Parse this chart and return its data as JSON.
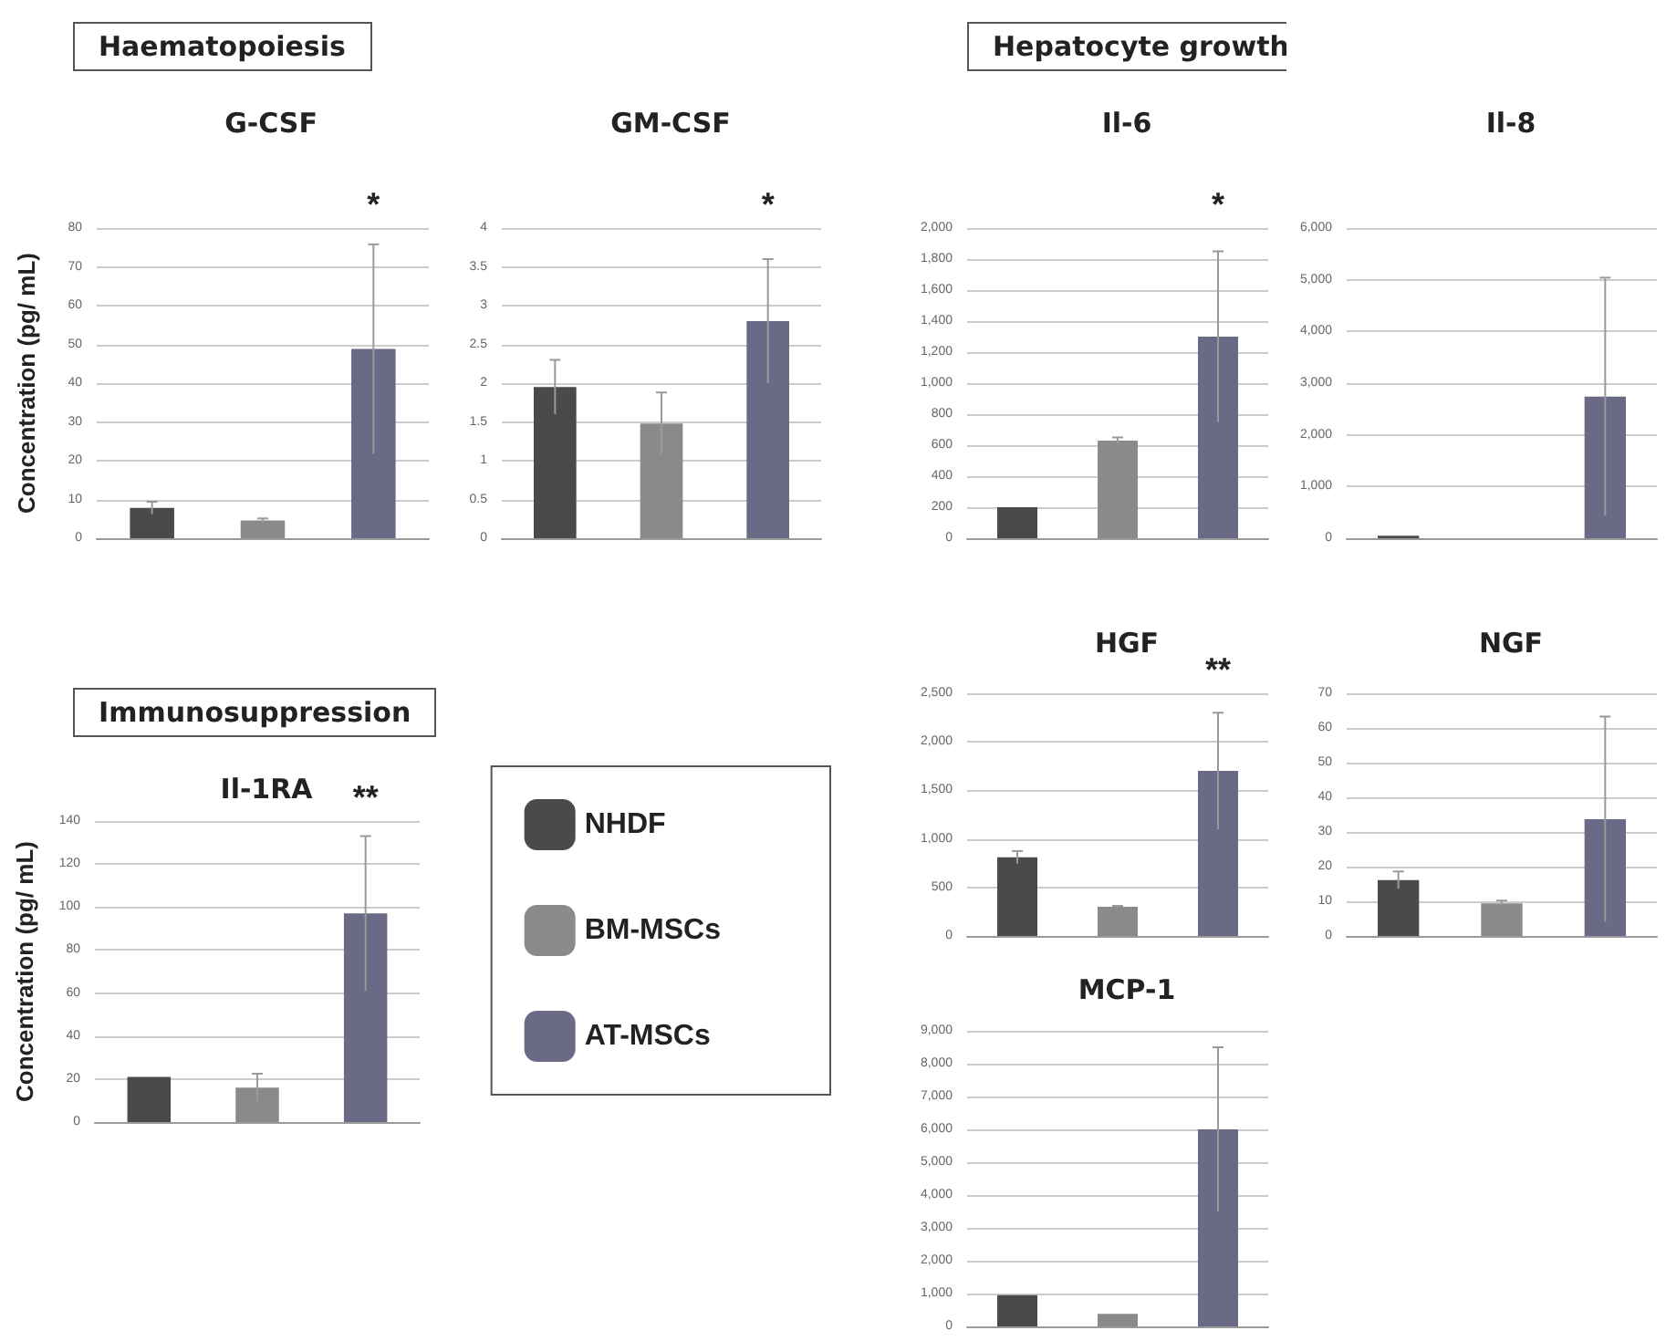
{
  "chart_data": [
    {
      "type": "bar",
      "subtitle": "Haematopoiesis",
      "title": "G-CSF",
      "ylabel": "Concentration (pg/ mL)",
      "categories": [
        null,
        null,
        null
      ],
      "values": [
        7.8,
        4.6,
        48.8
      ],
      "errors": [
        1.6,
        0.5,
        27
      ],
      "colors": [
        "#4a4a4a",
        "#8a8a8a",
        "#6a6a86"
      ],
      "ylim": [
        0,
        80
      ],
      "yticks": [
        0,
        10,
        20,
        30,
        40,
        50,
        60,
        70,
        80
      ],
      "grid": "y",
      "annotations": [
        "*"
      ]
    },
    {
      "type": "bar",
      "title": "GM-CSF",
      "categories": [
        null,
        null,
        null
      ],
      "values": [
        1.95,
        1.48,
        2.8
      ],
      "errors": [
        0.35,
        0.4,
        0.8
      ],
      "colors": [
        "#4a4a4a",
        "#8a8a8a",
        "#6a6a86"
      ],
      "ylim": [
        0,
        4
      ],
      "yticks": [
        0,
        0.5,
        1,
        1.5,
        2,
        2.5,
        3,
        3.5,
        4
      ],
      "grid": "y",
      "annotations": [
        "*"
      ]
    },
    {
      "type": "bar",
      "subtitle": "Hepatocyte growth",
      "title": "Il-6",
      "categories": [
        null,
        null,
        null
      ],
      "values": [
        200,
        630,
        1300
      ],
      "errors": [
        null,
        20,
        550
      ],
      "colors": [
        "#4a4a4a",
        "#8a8a8a",
        "#6a6a86"
      ],
      "ylim": [
        0,
        2000
      ],
      "yticks": [
        0,
        200,
        400,
        600,
        800,
        {
          "value": 1000,
          "label": "1,000"
        },
        {
          "value": 1200,
          "label": "1,200"
        },
        {
          "value": 1400,
          "label": "1,400"
        },
        {
          "value": 1600,
          "label": "1,600"
        },
        {
          "value": 1800,
          "label": "1,800"
        },
        {
          "value": 2000,
          "label": "2,000"
        }
      ],
      "grid": "y",
      "annotations": [
        "*"
      ]
    },
    {
      "type": "bar",
      "title": "Il-8",
      "categories": [
        null,
        null,
        null
      ],
      "values": [
        50,
        null,
        2740
      ],
      "errors": [
        null,
        null,
        2300
      ],
      "colors": [
        "#4a4a4a",
        "#8a8a8a",
        "#6a6a86"
      ],
      "ylim": [
        0,
        6000
      ],
      "yticks": [
        0,
        {
          "value": 1000,
          "label": "1,000"
        },
        {
          "value": 2000,
          "label": "2,000"
        },
        {
          "value": 3000,
          "label": "3,000"
        },
        {
          "value": 4000,
          "label": "4,000"
        },
        {
          "value": 5000,
          "label": "5,000"
        },
        {
          "value": 6000,
          "label": "6,000"
        }
      ],
      "grid": "y"
    },
    {
      "type": "bar",
      "subtitle": "Immunosuppression",
      "title": "Il-1RA",
      "ylabel": "Concentration (pg/ mL)",
      "categories": [
        null,
        null,
        null
      ],
      "series": [
        {
          "name": "NHDF",
          "color": "#4a4a4a",
          "values": [
            21,
            null,
            null
          ]
        },
        {
          "name": "BM-MSCs",
          "color": "#8a8a8a",
          "values": [
            null,
            16,
            null
          ],
          "errors": [
            null,
            6.5,
            null
          ]
        },
        {
          "name": "AT-MSCs",
          "color": "#6a6a86",
          "values": [
            null,
            null,
            97
          ],
          "errors": [
            null,
            null,
            36
          ]
        }
      ],
      "ylim": [
        0,
        140
      ],
      "yticks": [
        0,
        20,
        40,
        60,
        80,
        100,
        120,
        140
      ],
      "grid": "y",
      "legend": "right",
      "annotations": [
        "**"
      ]
    },
    {
      "type": "bar",
      "title": "HGF",
      "categories": [
        null,
        null,
        null
      ],
      "values": [
        810,
        300,
        1700
      ],
      "errors": [
        65,
        10,
        600
      ],
      "colors": [
        "#4a4a4a",
        "#8a8a8a",
        "#6a6a86"
      ],
      "ylim": [
        0,
        2500
      ],
      "yticks": [
        0,
        500,
        {
          "value": 1000,
          "label": "1,000"
        },
        {
          "value": 1500,
          "label": "1,500"
        },
        {
          "value": 2000,
          "label": "2,000"
        },
        {
          "value": 2500,
          "label": "2,500"
        }
      ],
      "grid": "y",
      "annotations": [
        "**"
      ]
    },
    {
      "type": "bar",
      "title": "NGF",
      "categories": [
        null,
        null,
        null
      ],
      "values": [
        16.1,
        9.4,
        33.7
      ],
      "errors": [
        2.5,
        0.8,
        29.6
      ],
      "colors": [
        "#4a4a4a",
        "#8a8a8a",
        "#6a6a86"
      ],
      "ylim": [
        0,
        70
      ],
      "yticks": [
        0,
        10,
        20,
        30,
        40,
        50,
        60,
        70
      ],
      "grid": "y"
    },
    {
      "type": "bar",
      "title": "MCP-1",
      "categories": [
        null,
        null,
        null
      ],
      "values": [
        950,
        380,
        6000
      ],
      "errors": [
        null,
        null,
        2500
      ],
      "colors": [
        "#4a4a4a",
        "#8a8a8a",
        "#6a6a86"
      ],
      "ylim": [
        0,
        9000
      ],
      "yticks": [
        0,
        {
          "value": 1000,
          "label": "1,000"
        },
        {
          "value": 2000,
          "label": "2,000"
        },
        {
          "value": 3000,
          "label": "3,000"
        },
        {
          "value": 4000,
          "label": "4,000"
        },
        {
          "value": 5000,
          "label": "5,000"
        },
        {
          "value": 6000,
          "label": "6,000"
        },
        {
          "value": 7000,
          "label": "7,000"
        },
        {
          "value": 8000,
          "label": "8,000"
        },
        {
          "value": 9000,
          "label": "9,000"
        }
      ],
      "grid": "y"
    }
  ]
}
